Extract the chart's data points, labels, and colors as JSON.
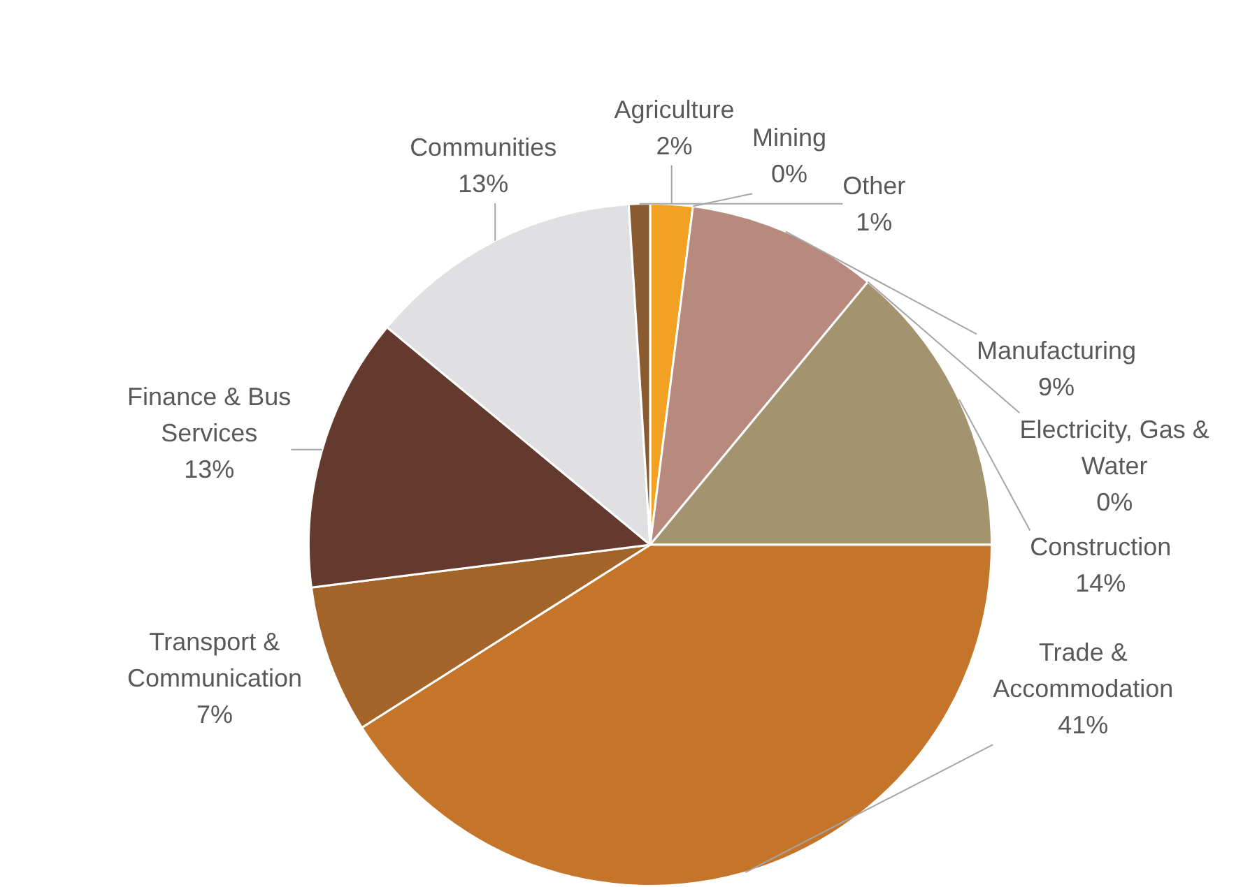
{
  "chart_data": {
    "type": "pie",
    "categories": [
      "Agriculture",
      "Mining",
      "Manufacturing",
      "Electricity, Gas & Water",
      "Construction",
      "Trade & Accommodation",
      "Transport & Communication",
      "Finance & Bus Services",
      "Communities",
      "Other"
    ],
    "values": [
      2,
      0,
      9,
      0,
      14,
      41,
      7,
      13,
      13,
      1
    ],
    "value_labels": [
      "2%",
      "0%",
      "9%",
      "0%",
      "14%",
      "41%",
      "7%",
      "13%",
      "13%",
      "1%"
    ],
    "colors": [
      "#f2a122",
      "#8c8c8c",
      "#b88a7e",
      "#d9c9a0",
      "#a3946f",
      "#c5752a",
      "#a26428",
      "#653a2e",
      "#e0e0e2",
      "#8a5a30"
    ],
    "legend": false
  }
}
